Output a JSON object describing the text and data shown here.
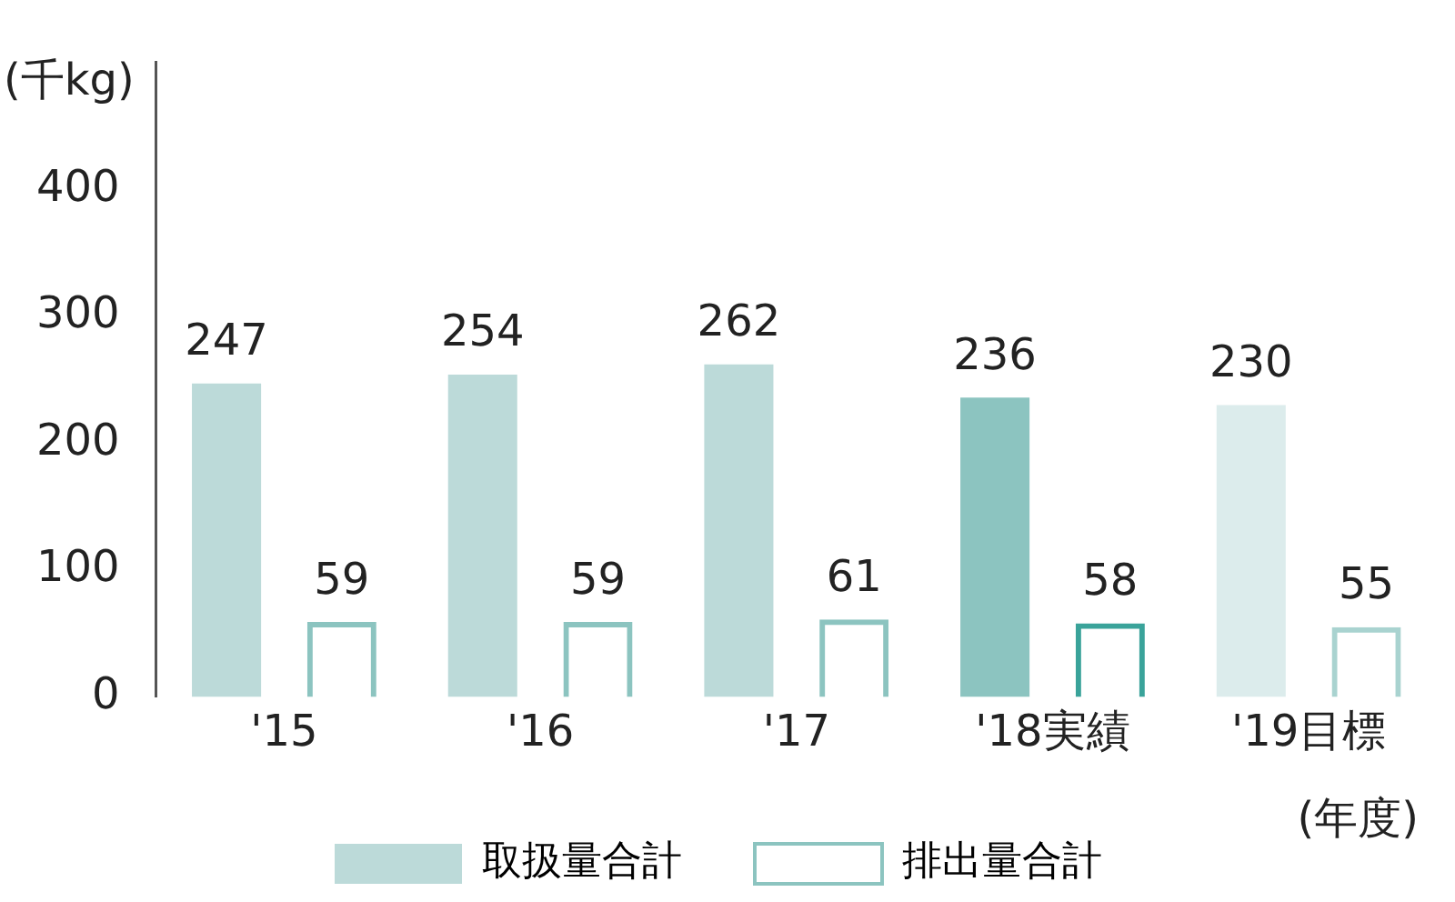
{
  "chart_data": {
    "type": "bar",
    "ylabel": "(千kg)",
    "categories": [
      "'15",
      "'16",
      "'17",
      "'18実績",
      "'19目標"
    ],
    "series": [
      {
        "name": "取扱量合計",
        "color": "#bcdad9",
        "colors": [
          "#bcdad9",
          "#bcdad9",
          "#bcdad9",
          "#8cc4c0",
          "#dcecec"
        ],
        "values": [
          247,
          254,
          262,
          236,
          230
        ]
      },
      {
        "name": "排出量合計",
        "color": "#8cc4c0",
        "colors": [
          "#8cc4c0",
          "#8cc4c0",
          "#8cc4c0",
          "#3aa39a",
          "#a9d3d0"
        ],
        "values": [
          59,
          59,
          61,
          58,
          55
        ]
      }
    ],
    "ylim": [
      0,
      500
    ],
    "yticks": [
      0,
      100,
      200,
      300,
      400
    ],
    "grid": false,
    "legend": "bottom",
    "data_labels": true,
    "annotations": [
      "(年度)"
    ]
  }
}
